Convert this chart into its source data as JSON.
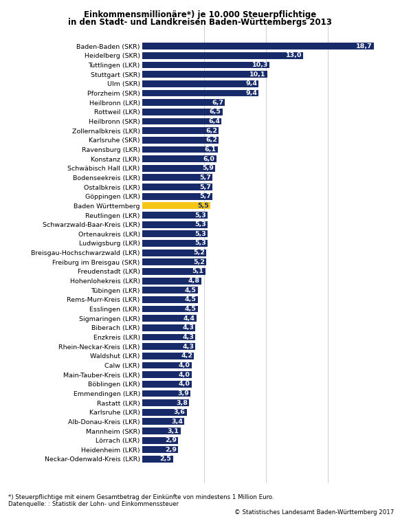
{
  "title_line1": "Einkommensmillionäre*) je 10.000 Steuerpflichtige",
  "title_line2": "in den Stadt- und Landkreisen Baden-Württembergs 2013",
  "categories": [
    "Baden-Baden (SKR)",
    "Heidelberg (SKR)",
    "Tuttlingen (LKR)",
    "Stuttgart (SKR)",
    "Ulm (SKR)",
    "Pforzheim (SKR)",
    "Heilbronn (LKR)",
    "Rottweil (LKR)",
    "Heilbronn (SKR)",
    "Zollernalbkreis (LKR)",
    "Karlsruhe (SKR)",
    "Ravensburg (LKR)",
    "Konstanz (LKR)",
    "Schwäbisch Hall (LKR)",
    "Bodenseekreis (LKR)",
    "Ostalbkreis (LKR)",
    "Göppingen (LKR)",
    "Baden Württemberg",
    "Reutlingen (LKR)",
    "Schwarzwald-Baar-Kreis (LKR)",
    "Ortenaukreis (LKR)",
    "Ludwigsburg (LKR)",
    "Breisgau-Hochschwarzwald (LKR)",
    "Freiburg im Breisgau (SKR)",
    "Freudenstadt (LKR)",
    "Hohenlohekreis (LKR)",
    "Tübingen (LKR)",
    "Rems-Murr-Kreis (LKR)",
    "Esslingen (LKR)",
    "Sigmaringen (LKR)",
    "Biberach (LKR)",
    "Enzkreis (LKR)",
    "Rhein-Neckar-Kreis (LKR)",
    "Waldshut (LKR)",
    "Calw (LKR)",
    "Main-Tauber-Kreis (LKR)",
    "Böblingen (LKR)",
    "Emmendingen (LKR)",
    "Rastatt (LKR)",
    "Karlsruhe (LKR)",
    "Alb-Donau-Kreis (LKR)",
    "Mannheim (SKR)",
    "Lörrach (LKR)",
    "Heidenheim (LKR)",
    "Neckar-Odenwald-Kreis (LKR)"
  ],
  "values": [
    18.7,
    13.0,
    10.3,
    10.1,
    9.4,
    9.4,
    6.7,
    6.5,
    6.4,
    6.2,
    6.2,
    6.1,
    6.0,
    5.9,
    5.7,
    5.7,
    5.7,
    5.5,
    5.3,
    5.3,
    5.3,
    5.3,
    5.2,
    5.2,
    5.1,
    4.8,
    4.5,
    4.5,
    4.5,
    4.4,
    4.3,
    4.3,
    4.3,
    4.2,
    4.0,
    4.0,
    4.0,
    3.9,
    3.8,
    3.6,
    3.4,
    3.1,
    2.9,
    2.9,
    2.5
  ],
  "bar_color_default": "#172b6b",
  "bar_color_highlight": "#f5c518",
  "highlight_index": 17,
  "value_label_color_default": "#ffffff",
  "value_label_color_highlight": "#172b6b",
  "footnote1": "*) Steuerpflichtige mit einem Gesamtbetrag der Einкünfte von mindestens 1 Million Euro.",
  "footnote2": "Datenquelle: : Statistik der Lohn- und Einkommenssteuer",
  "copyright": "© Statistisches Landesamt Baden-Württemberg 2017",
  "background_color": "#ffffff",
  "xlim": [
    0,
    20
  ],
  "grid_color": "#c8c8c8",
  "bar_height": 0.72,
  "label_fontsize": 6.8,
  "value_fontsize": 6.8,
  "title_fontsize": 8.5,
  "footnote_fontsize": 6.2
}
